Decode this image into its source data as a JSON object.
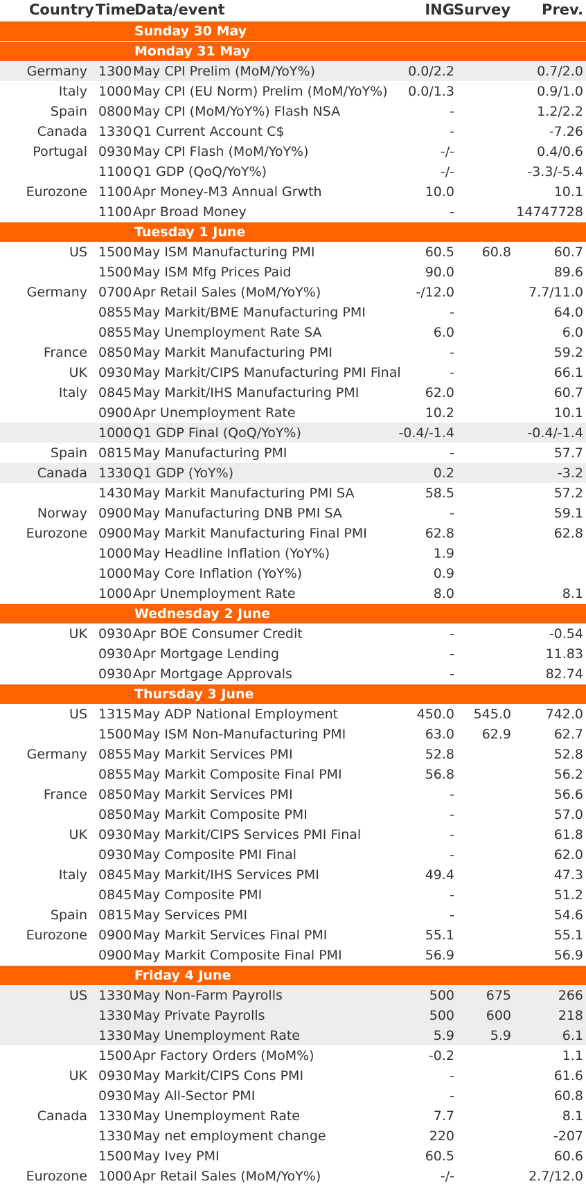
{
  "header": {
    "country": "Country",
    "time": "Time",
    "event": "Data/event",
    "ing": "ING",
    "survey": "Survey",
    "prev": "Prev."
  },
  "sections": [
    {
      "day": "Sunday 30 May",
      "rows": []
    },
    {
      "day": "Monday 31 May",
      "rows": [
        {
          "country": "Germany",
          "time": "1300",
          "event": "May CPI Prelim (MoM/YoY%)",
          "ing": "0.0/2.2",
          "survey": "",
          "prev": "0.7/2.0",
          "shade": true
        },
        {
          "country": "Italy",
          "time": "1000",
          "event": "May CPI (EU Norm) Prelim (MoM/YoY%)",
          "ing": "0.0/1.3",
          "survey": "",
          "prev": "0.9/1.0"
        },
        {
          "country": "Spain",
          "time": "0800",
          "event": "May CPI (MoM/YoY%) Flash NSA",
          "ing": "-",
          "survey": "",
          "prev": "1.2/2.2"
        },
        {
          "country": "Canada",
          "time": "1330",
          "event": "Q1 Current Account C$",
          "ing": "-",
          "survey": "",
          "prev": "-7.26"
        },
        {
          "country": "Portugal",
          "time": "0930",
          "event": "May CPI Flash (MoM/YoY%)",
          "ing": "-/-",
          "survey": "",
          "prev": "0.4/0.6"
        },
        {
          "country": "",
          "time": "1100",
          "event": "Q1 GDP (QoQ/YoY%)",
          "ing": "-/-",
          "survey": "",
          "prev": "-3.3/-5.4"
        },
        {
          "country": "Eurozone",
          "time": "1100",
          "event": "Apr Money-M3 Annual Grwth",
          "ing": "10.0",
          "survey": "",
          "prev": "10.1"
        },
        {
          "country": "",
          "time": "1100",
          "event": "Apr Broad Money",
          "ing": "-",
          "survey": "",
          "prev": "14747728"
        }
      ]
    },
    {
      "day": "Tuesday 1 June",
      "rows": [
        {
          "country": "US",
          "time": "1500",
          "event": "May ISM Manufacturing PMI",
          "ing": "60.5",
          "survey": "60.8",
          "prev": "60.7"
        },
        {
          "country": "",
          "time": "1500",
          "event": "May ISM Mfg Prices Paid",
          "ing": "90.0",
          "survey": "",
          "prev": "89.6"
        },
        {
          "country": "Germany",
          "time": "0700",
          "event": "Apr Retail Sales (MoM/YoY%)",
          "ing": "-/12.0",
          "survey": "",
          "prev": "7.7/11.0"
        },
        {
          "country": "",
          "time": "0855",
          "event": "May Markit/BME Manufacturing PMI",
          "ing": "-",
          "survey": "",
          "prev": "64.0"
        },
        {
          "country": "",
          "time": "0855",
          "event": "May Unemployment Rate SA",
          "ing": "6.0",
          "survey": "",
          "prev": "6.0"
        },
        {
          "country": "France",
          "time": "0850",
          "event": "May Markit Manufacturing PMI",
          "ing": "-",
          "survey": "",
          "prev": "59.2"
        },
        {
          "country": "UK",
          "time": "0930",
          "event": "May Markit/CIPS Manufacturing PMI Final",
          "ing": "-",
          "survey": "",
          "prev": "66.1"
        },
        {
          "country": "Italy",
          "time": "0845",
          "event": "May Markit/IHS Manufacturing PMI",
          "ing": "62.0",
          "survey": "",
          "prev": "60.7"
        },
        {
          "country": "",
          "time": "0900",
          "event": "Apr Unemployment Rate",
          "ing": "10.2",
          "survey": "",
          "prev": "10.1"
        },
        {
          "country": "",
          "time": "1000",
          "event": "Q1 GDP Final (QoQ/YoY%)",
          "ing": "-0.4/-1.4",
          "survey": "",
          "prev": "-0.4/-1.4",
          "shade": true
        },
        {
          "country": "Spain",
          "time": "0815",
          "event": "May Manufacturing PMI",
          "ing": "-",
          "survey": "",
          "prev": "57.7"
        },
        {
          "country": "Canada",
          "time": "1330",
          "event": "Q1 GDP (YoY%)",
          "ing": "0.2",
          "survey": "",
          "prev": "-3.2",
          "shade": true
        },
        {
          "country": "",
          "time": "1430",
          "event": "May Markit Manufacturing PMI SA",
          "ing": "58.5",
          "survey": "",
          "prev": "57.2"
        },
        {
          "country": "Norway",
          "time": "0900",
          "event": "May Manufacturing DNB PMI SA",
          "ing": "-",
          "survey": "",
          "prev": "59.1"
        },
        {
          "country": "Eurozone",
          "time": "0900",
          "event": "May Markit Manufacturing Final PMI",
          "ing": "62.8",
          "survey": "",
          "prev": "62.8"
        },
        {
          "country": "",
          "time": "1000",
          "event": "May Headline Inflation (YoY%)",
          "ing": "1.9",
          "survey": "",
          "prev": ""
        },
        {
          "country": "",
          "time": "1000",
          "event": "May Core Inflation (YoY%)",
          "ing": "0.9",
          "survey": "",
          "prev": ""
        },
        {
          "country": "",
          "time": "1000",
          "event": "Apr Unemployment Rate",
          "ing": "8.0",
          "survey": "",
          "prev": "8.1"
        }
      ]
    },
    {
      "day": "Wednesday 2 June",
      "rows": [
        {
          "country": "UK",
          "time": "0930",
          "event": "Apr BOE Consumer Credit",
          "ing": "-",
          "survey": "",
          "prev": "-0.54"
        },
        {
          "country": "",
          "time": "0930",
          "event": "Apr Mortgage Lending",
          "ing": "-",
          "survey": "",
          "prev": "11.83"
        },
        {
          "country": "",
          "time": "0930",
          "event": "Apr Mortgage Approvals",
          "ing": "-",
          "survey": "",
          "prev": "82.74"
        }
      ]
    },
    {
      "day": "Thursday 3 June",
      "rows": [
        {
          "country": "US",
          "time": "1315",
          "event": "May ADP National Employment",
          "ing": "450.0",
          "survey": "545.0",
          "prev": "742.0"
        },
        {
          "country": "",
          "time": "1500",
          "event": "May ISM Non-Manufacturing PMI",
          "ing": "63.0",
          "survey": "62.9",
          "prev": "62.7"
        },
        {
          "country": "Germany",
          "time": "0855",
          "event": "May Markit Services PMI",
          "ing": "52.8",
          "survey": "",
          "prev": "52.8"
        },
        {
          "country": "",
          "time": "0855",
          "event": "May Markit Composite Final PMI",
          "ing": "56.8",
          "survey": "",
          "prev": "56.2"
        },
        {
          "country": "France",
          "time": "0850",
          "event": "May Markit Services PMI",
          "ing": "-",
          "survey": "",
          "prev": "56.6"
        },
        {
          "country": "",
          "time": "0850",
          "event": "May Markit Composite PMI",
          "ing": "-",
          "survey": "",
          "prev": "57.0"
        },
        {
          "country": "UK",
          "time": "0930",
          "event": "May Markit/CIPS Services PMI Final",
          "ing": "-",
          "survey": "",
          "prev": "61.8"
        },
        {
          "country": "",
          "time": "0930",
          "event": "May Composite PMI Final",
          "ing": "-",
          "survey": "",
          "prev": "62.0"
        },
        {
          "country": "Italy",
          "time": "0845",
          "event": "May Markit/IHS Services PMI",
          "ing": "49.4",
          "survey": "",
          "prev": "47.3"
        },
        {
          "country": "",
          "time": "0845",
          "event": "May Composite PMI",
          "ing": "-",
          "survey": "",
          "prev": "51.2"
        },
        {
          "country": "Spain",
          "time": "0815",
          "event": "May Services PMI",
          "ing": "-",
          "survey": "",
          "prev": "54.6"
        },
        {
          "country": "Eurozone",
          "time": "0900",
          "event": "May Markit Services Final PMI",
          "ing": "55.1",
          "survey": "",
          "prev": "55.1"
        },
        {
          "country": "",
          "time": "0900",
          "event": "May Markit Composite Final PMI",
          "ing": "56.9",
          "survey": "",
          "prev": "56.9"
        }
      ]
    },
    {
      "day": "Friday 4 June",
      "rows": [
        {
          "country": "US",
          "time": "1330",
          "event": "May Non-Farm Payrolls",
          "ing": "500",
          "survey": "675",
          "prev": "266",
          "shade": true
        },
        {
          "country": "",
          "time": "1330",
          "event": "May Private Payrolls",
          "ing": "500",
          "survey": "600",
          "prev": "218",
          "shade": true
        },
        {
          "country": "",
          "time": "1330",
          "event": "May Unemployment Rate",
          "ing": "5.9",
          "survey": "5.9",
          "prev": "6.1",
          "shade": true
        },
        {
          "country": "",
          "time": "1500",
          "event": "Apr Factory Orders (MoM%)",
          "ing": "-0.2",
          "survey": "",
          "prev": "1.1"
        },
        {
          "country": "UK",
          "time": "0930",
          "event": "May Markit/CIPS Cons PMI",
          "ing": "-",
          "survey": "",
          "prev": "61.6"
        },
        {
          "country": "",
          "time": "0930",
          "event": "May All-Sector PMI",
          "ing": "-",
          "survey": "",
          "prev": "60.8"
        },
        {
          "country": "Canada",
          "time": "1330",
          "event": "May Unemployment Rate",
          "ing": "7.7",
          "survey": "",
          "prev": "8.1"
        },
        {
          "country": "",
          "time": "1330",
          "event": "May net employment change",
          "ing": "220",
          "survey": "",
          "prev": "-207"
        },
        {
          "country": "",
          "time": "1500",
          "event": "May Ivey PMI",
          "ing": "60.5",
          "survey": "",
          "prev": "60.6"
        },
        {
          "country": "Eurozone",
          "time": "1000",
          "event": "Apr Retail Sales (MoM/YoY%)",
          "ing": "-/-",
          "survey": "",
          "prev": "2.7/12.0"
        }
      ]
    }
  ]
}
